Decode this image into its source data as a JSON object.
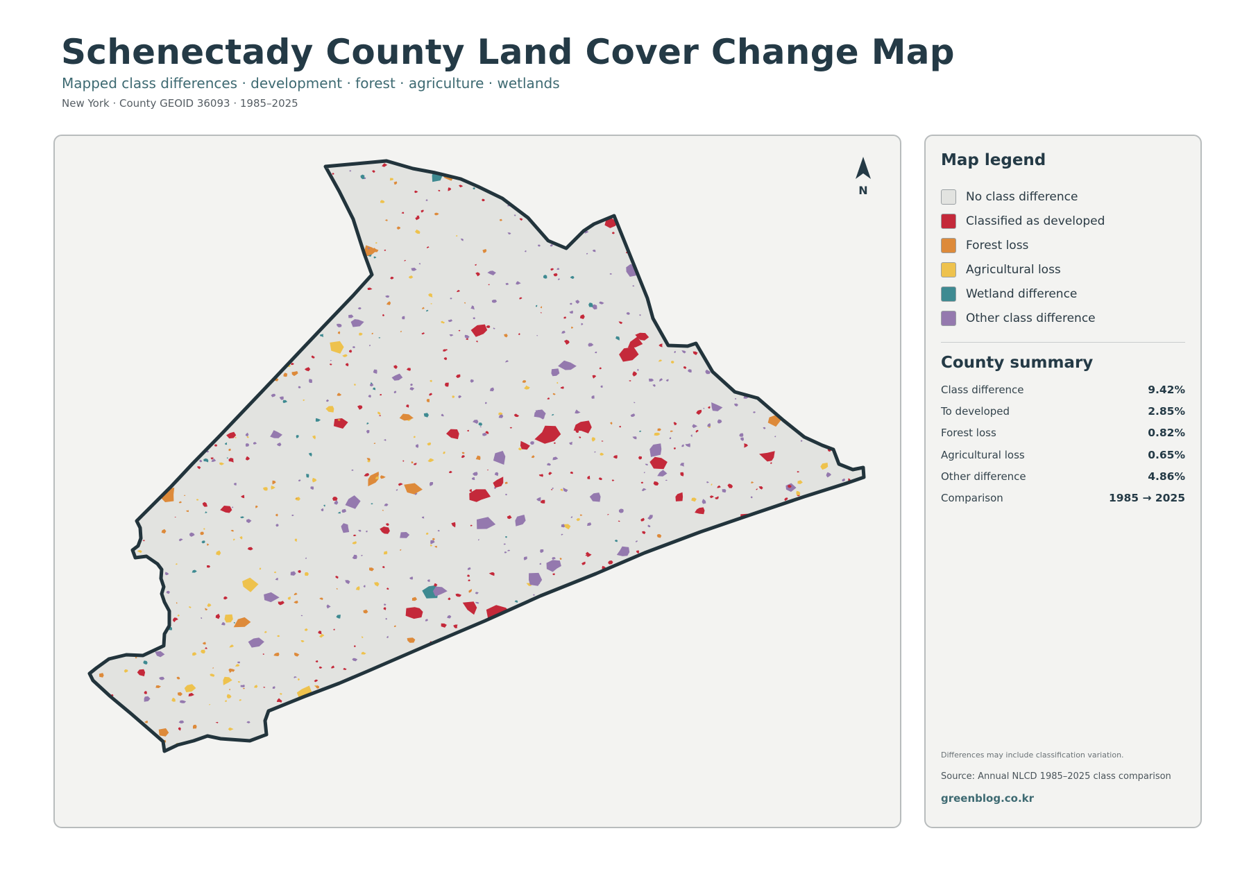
{
  "header": {
    "title": "Schenectady County Land Cover Change Map",
    "subtitle": "Mapped class differences · development · forest · agriculture · wetlands",
    "meta": "New York · County GEOID 36093 · 1985–2025"
  },
  "map": {
    "north_label": "N",
    "boundary_color": "#22343c",
    "fill_color": "#e2e3e0"
  },
  "legend": {
    "heading": "Map legend",
    "items": [
      {
        "label": "No class difference",
        "color": "#e2e3e0"
      },
      {
        "label": "Classified as developed",
        "color": "#c4293a"
      },
      {
        "label": "Forest loss",
        "color": "#dd8a3a"
      },
      {
        "label": "Agricultural loss",
        "color": "#eec24d"
      },
      {
        "label": "Wetland difference",
        "color": "#3e8a91"
      },
      {
        "label": "Other class difference",
        "color": "#9479ae"
      }
    ]
  },
  "summary": {
    "heading": "County summary",
    "rows": [
      {
        "label": "Class difference",
        "value": "9.42%"
      },
      {
        "label": "To developed",
        "value": "2.85%"
      },
      {
        "label": "Forest loss",
        "value": "0.82%"
      },
      {
        "label": "Agricultural loss",
        "value": "0.65%"
      },
      {
        "label": "Other difference",
        "value": "4.86%"
      },
      {
        "label": "Comparison",
        "value": "1985 → 2025"
      }
    ]
  },
  "footer": {
    "note": "Differences may include classification variation.",
    "source": "Source: Annual NLCD 1985–2025 class comparison",
    "credit": "greenblog.co.kr"
  }
}
